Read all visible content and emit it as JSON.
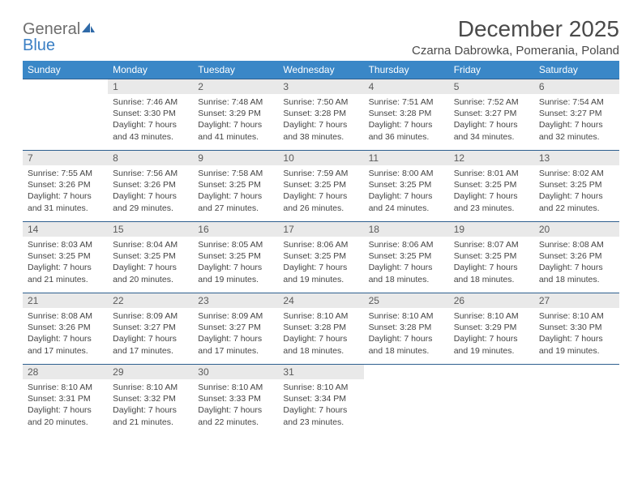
{
  "brand": {
    "part1": "General",
    "part2": "Blue"
  },
  "title": "December 2025",
  "location": "Czarna Dabrowka, Pomerania, Poland",
  "colors": {
    "header_bg": "#3a87c7",
    "header_text": "#ffffff",
    "daynum_bg": "#e9e9e9",
    "rule": "#2e5f8f",
    "logo_gray": "#6e6e6e",
    "logo_blue": "#3a7fc4"
  },
  "weekdays": [
    "Sunday",
    "Monday",
    "Tuesday",
    "Wednesday",
    "Thursday",
    "Friday",
    "Saturday"
  ],
  "weeks": [
    [
      null,
      {
        "n": "1",
        "sr": "7:46 AM",
        "ss": "3:30 PM",
        "dl": "7 hours and 43 minutes."
      },
      {
        "n": "2",
        "sr": "7:48 AM",
        "ss": "3:29 PM",
        "dl": "7 hours and 41 minutes."
      },
      {
        "n": "3",
        "sr": "7:50 AM",
        "ss": "3:28 PM",
        "dl": "7 hours and 38 minutes."
      },
      {
        "n": "4",
        "sr": "7:51 AM",
        "ss": "3:28 PM",
        "dl": "7 hours and 36 minutes."
      },
      {
        "n": "5",
        "sr": "7:52 AM",
        "ss": "3:27 PM",
        "dl": "7 hours and 34 minutes."
      },
      {
        "n": "6",
        "sr": "7:54 AM",
        "ss": "3:27 PM",
        "dl": "7 hours and 32 minutes."
      }
    ],
    [
      {
        "n": "7",
        "sr": "7:55 AM",
        "ss": "3:26 PM",
        "dl": "7 hours and 31 minutes."
      },
      {
        "n": "8",
        "sr": "7:56 AM",
        "ss": "3:26 PM",
        "dl": "7 hours and 29 minutes."
      },
      {
        "n": "9",
        "sr": "7:58 AM",
        "ss": "3:25 PM",
        "dl": "7 hours and 27 minutes."
      },
      {
        "n": "10",
        "sr": "7:59 AM",
        "ss": "3:25 PM",
        "dl": "7 hours and 26 minutes."
      },
      {
        "n": "11",
        "sr": "8:00 AM",
        "ss": "3:25 PM",
        "dl": "7 hours and 24 minutes."
      },
      {
        "n": "12",
        "sr": "8:01 AM",
        "ss": "3:25 PM",
        "dl": "7 hours and 23 minutes."
      },
      {
        "n": "13",
        "sr": "8:02 AM",
        "ss": "3:25 PM",
        "dl": "7 hours and 22 minutes."
      }
    ],
    [
      {
        "n": "14",
        "sr": "8:03 AM",
        "ss": "3:25 PM",
        "dl": "7 hours and 21 minutes."
      },
      {
        "n": "15",
        "sr": "8:04 AM",
        "ss": "3:25 PM",
        "dl": "7 hours and 20 minutes."
      },
      {
        "n": "16",
        "sr": "8:05 AM",
        "ss": "3:25 PM",
        "dl": "7 hours and 19 minutes."
      },
      {
        "n": "17",
        "sr": "8:06 AM",
        "ss": "3:25 PM",
        "dl": "7 hours and 19 minutes."
      },
      {
        "n": "18",
        "sr": "8:06 AM",
        "ss": "3:25 PM",
        "dl": "7 hours and 18 minutes."
      },
      {
        "n": "19",
        "sr": "8:07 AM",
        "ss": "3:25 PM",
        "dl": "7 hours and 18 minutes."
      },
      {
        "n": "20",
        "sr": "8:08 AM",
        "ss": "3:26 PM",
        "dl": "7 hours and 18 minutes."
      }
    ],
    [
      {
        "n": "21",
        "sr": "8:08 AM",
        "ss": "3:26 PM",
        "dl": "7 hours and 17 minutes."
      },
      {
        "n": "22",
        "sr": "8:09 AM",
        "ss": "3:27 PM",
        "dl": "7 hours and 17 minutes."
      },
      {
        "n": "23",
        "sr": "8:09 AM",
        "ss": "3:27 PM",
        "dl": "7 hours and 17 minutes."
      },
      {
        "n": "24",
        "sr": "8:10 AM",
        "ss": "3:28 PM",
        "dl": "7 hours and 18 minutes."
      },
      {
        "n": "25",
        "sr": "8:10 AM",
        "ss": "3:28 PM",
        "dl": "7 hours and 18 minutes."
      },
      {
        "n": "26",
        "sr": "8:10 AM",
        "ss": "3:29 PM",
        "dl": "7 hours and 19 minutes."
      },
      {
        "n": "27",
        "sr": "8:10 AM",
        "ss": "3:30 PM",
        "dl": "7 hours and 19 minutes."
      }
    ],
    [
      {
        "n": "28",
        "sr": "8:10 AM",
        "ss": "3:31 PM",
        "dl": "7 hours and 20 minutes."
      },
      {
        "n": "29",
        "sr": "8:10 AM",
        "ss": "3:32 PM",
        "dl": "7 hours and 21 minutes."
      },
      {
        "n": "30",
        "sr": "8:10 AM",
        "ss": "3:33 PM",
        "dl": "7 hours and 22 minutes."
      },
      {
        "n": "31",
        "sr": "8:10 AM",
        "ss": "3:34 PM",
        "dl": "7 hours and 23 minutes."
      },
      null,
      null,
      null
    ]
  ],
  "labels": {
    "sunrise": "Sunrise:",
    "sunset": "Sunset:",
    "daylight": "Daylight:"
  }
}
